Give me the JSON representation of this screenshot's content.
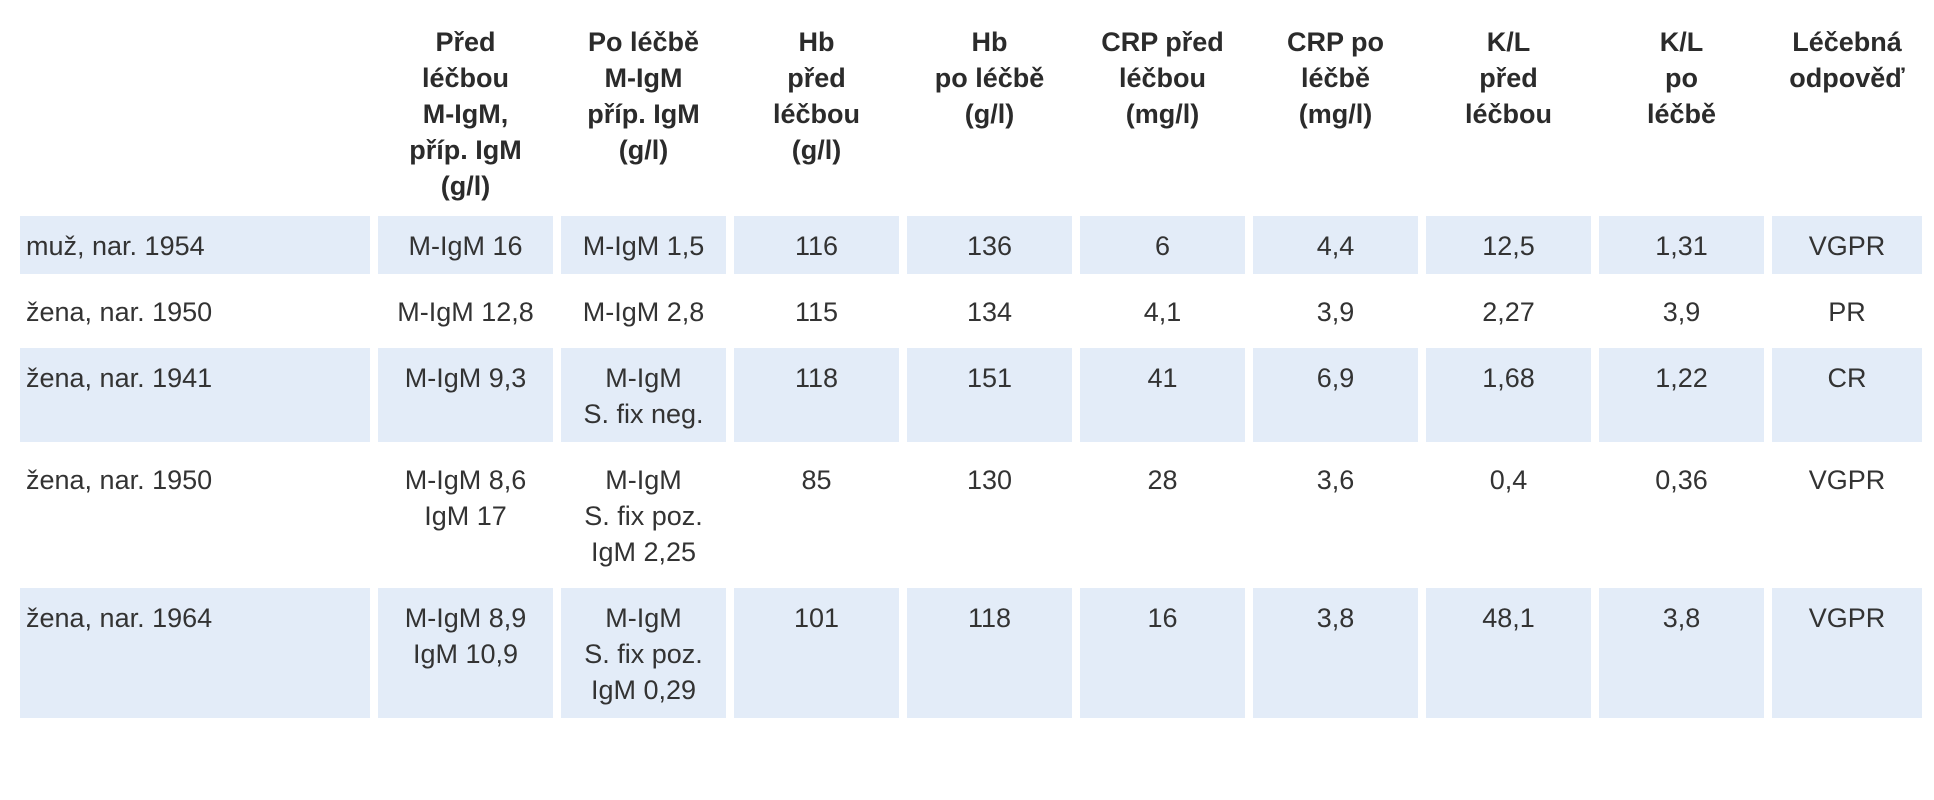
{
  "table": {
    "headers": [
      "",
      "Před\nléčbou\nM-IgM,\npříp. IgM\n(g/l)",
      "Po léčbě\nM-IgM\npříp. IgM\n(g/l)",
      "Hb\npřed\nléčbou\n(g/l)",
      "Hb\npo léčbě\n(g/l)",
      "CRP před\nléčbou\n(mg/l)",
      "CRP po\nléčbě\n(mg/l)",
      "K/L\npřed\nléčbou",
      "K/L\npo\nléčbě",
      "Léčebná\nodpověď"
    ],
    "rows": [
      [
        "muž, nar. 1954",
        "M-IgM 16",
        "M-IgM 1,5",
        "116",
        "136",
        "6",
        "4,4",
        "12,5",
        "1,31",
        "VGPR"
      ],
      [
        "žena, nar. 1950",
        "M-IgM 12,8",
        "M-IgM 2,8",
        "115",
        "134",
        "4,1",
        "3,9",
        "2,27",
        "3,9",
        "PR"
      ],
      [
        "žena, nar. 1941",
        "M-IgM 9,3",
        "M-IgM\nS. fix neg.",
        "118",
        "151",
        "41",
        "6,9",
        "1,68",
        "1,22",
        "CR"
      ],
      [
        "žena, nar. 1950",
        "M-IgM 8,6\nIgM 17",
        "M-IgM\nS. fix poz.\nIgM 2,25",
        "85",
        "130",
        "28",
        "3,6",
        "0,4",
        "0,36",
        "VGPR"
      ],
      [
        "žena, nar. 1964",
        "M-IgM 8,9\nIgM 10,9",
        "M-IgM\nS. fix poz.\nIgM 0,29",
        "101",
        "118",
        "16",
        "3,8",
        "48,1",
        "3,8",
        "VGPR"
      ]
    ]
  },
  "colors": {
    "row_shade": "#e3ecf8",
    "text": "#333333"
  }
}
